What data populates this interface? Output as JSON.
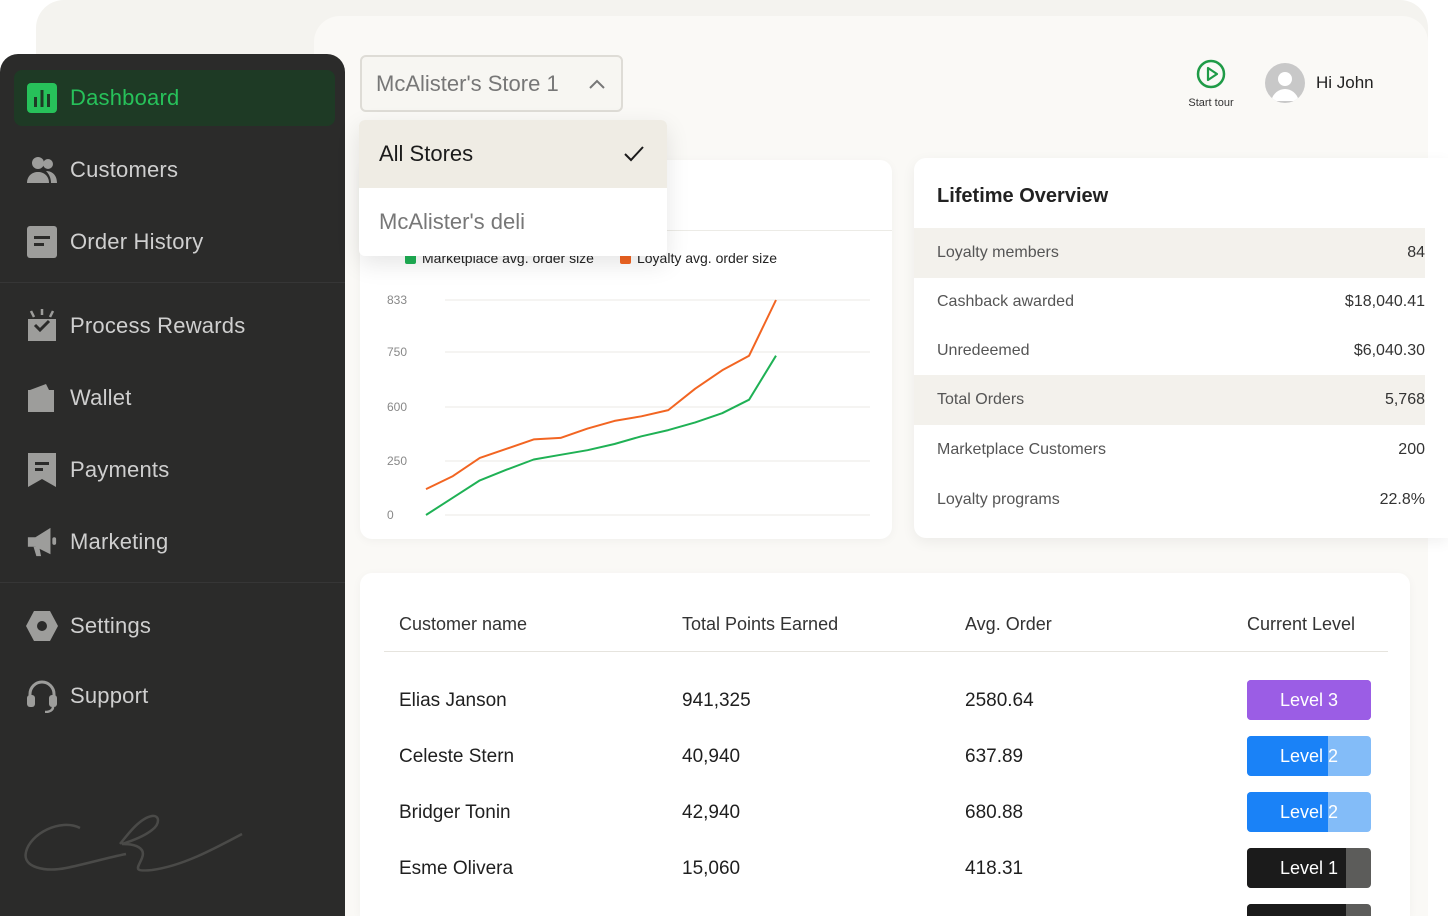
{
  "sidebar": {
    "items": [
      {
        "label": "Dashboard",
        "icon": "bar-chart-icon",
        "active": true
      },
      {
        "label": "Customers",
        "icon": "users-icon"
      },
      {
        "label": "Order History",
        "icon": "document-icon"
      },
      {
        "label": "Process Rewards",
        "icon": "gift-box-icon"
      },
      {
        "label": "Wallet",
        "icon": "wallet-icon"
      },
      {
        "label": "Payments",
        "icon": "receipt-icon"
      },
      {
        "label": "Marketing",
        "icon": "megaphone-icon"
      },
      {
        "label": "Settings",
        "icon": "hexagon-settings-icon"
      },
      {
        "label": "Support",
        "icon": "headset-icon"
      }
    ]
  },
  "header": {
    "store_select": {
      "selected": "McAlister's Store 1"
    },
    "store_options": [
      {
        "label": "All Stores",
        "selected": true
      },
      {
        "label": "McAlister's deli",
        "selected": false
      }
    ],
    "tour_label": "Start tour",
    "user_greeting": "Hi John"
  },
  "colors": {
    "accent_green": "#27c15a",
    "marketplace_series": "#1fb155",
    "loyalty_series": "#f26522",
    "level3": "#9b5de5",
    "level2": "#1a82f7",
    "level2_light": "#83bcf8",
    "level1": "#1b1b1b",
    "level1_light": "#5c5c5a"
  },
  "chart_data": {
    "type": "line",
    "legend_position": "top",
    "grid": true,
    "y_ticks": [
      "833",
      "750",
      "600",
      "250",
      "0"
    ],
    "series": [
      {
        "name": "Marketplace avg. order size",
        "color": "#1fb155",
        "values": [
          0,
          80,
          160,
          210,
          260,
          290,
          320,
          360,
          410,
          450,
          500,
          560,
          620,
          740
        ]
      },
      {
        "name": "Loyalty avg. order size",
        "color": "#f26522",
        "values": [
          120,
          180,
          270,
          330,
          390,
          400,
          460,
          510,
          540,
          580,
          650,
          700,
          740,
          833
        ]
      }
    ]
  },
  "overview": {
    "title": "Lifetime Overview",
    "rows": [
      {
        "label": "Loyalty members",
        "value": "84",
        "shaded": true
      },
      {
        "label": "Cashback awarded",
        "value": "$18,040.41",
        "shaded": false
      },
      {
        "label": "Unredeemed",
        "value": "$6,040.30",
        "shaded": false
      },
      {
        "label": "Total Orders",
        "value": "5,768",
        "shaded": true
      },
      {
        "label": "Marketplace Customers",
        "value": "200",
        "shaded": false
      },
      {
        "label": "Loyalty programs",
        "value": "22.8%",
        "shaded": false
      }
    ]
  },
  "customers_table": {
    "headers": [
      "Customer name",
      "Total Points Earned",
      "Avg. Order",
      "Current Level"
    ],
    "rows": [
      {
        "name": "Elias Janson",
        "points": "941,325",
        "avg_order": "2580.64",
        "level": "Level 3",
        "tier": 3,
        "progress": 1.0
      },
      {
        "name": "Celeste Stern",
        "points": "40,940",
        "avg_order": "637.89",
        "level": "Level 2",
        "tier": 2,
        "progress": 0.65
      },
      {
        "name": "Bridger Tonin",
        "points": "42,940",
        "avg_order": "680.88",
        "level": "Level 2",
        "tier": 2,
        "progress": 0.65
      },
      {
        "name": "Esme Olivera",
        "points": "15,060",
        "avg_order": "418.31",
        "level": "Level 1",
        "tier": 1,
        "progress": 0.8
      }
    ]
  }
}
